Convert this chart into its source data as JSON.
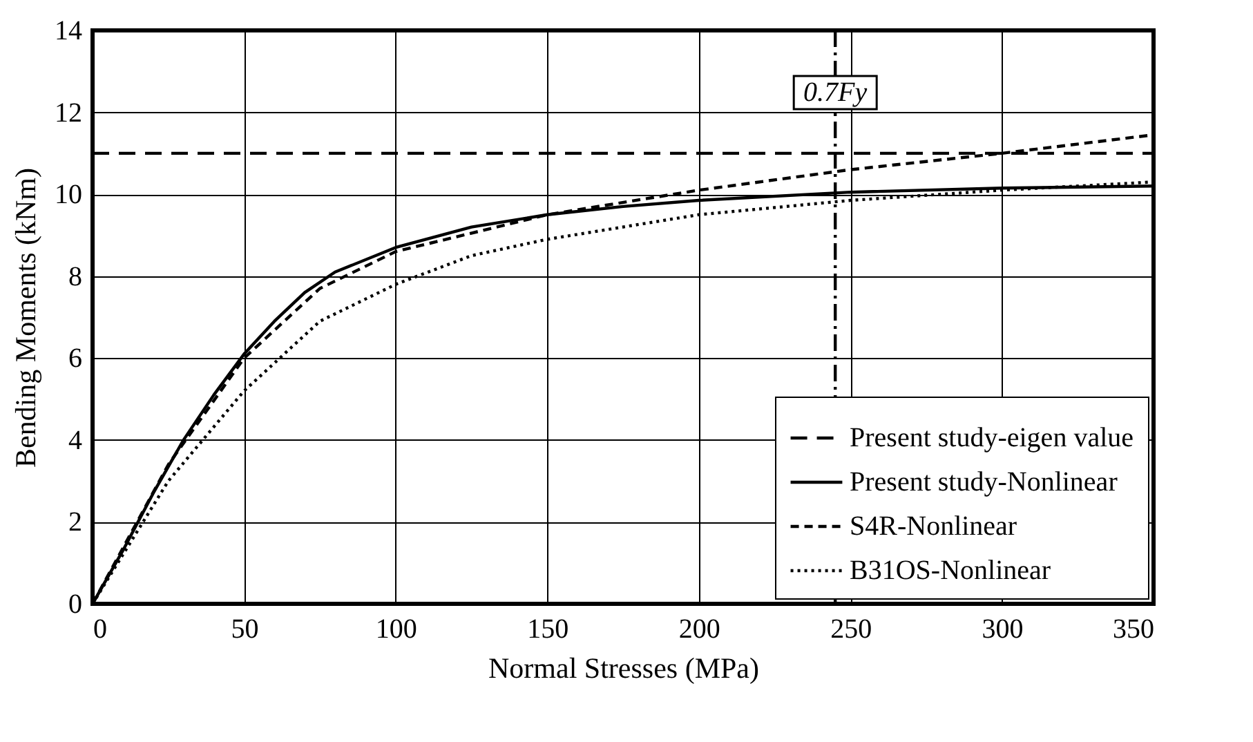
{
  "chart_data": {
    "type": "line",
    "xlabel": "Normal Stresses (MPa)",
    "ylabel": "Bending Moments (kNm)",
    "xlim": [
      0,
      350
    ],
    "xticks": [
      0,
      50,
      100,
      150,
      200,
      250,
      300,
      350
    ],
    "ylim": [
      0,
      14
    ],
    "yticks": [
      0,
      2,
      4,
      6,
      8,
      10,
      12,
      14
    ],
    "grid": true,
    "legend": "bottom right",
    "series": [
      {
        "name": "Present study-eigen value",
        "color": "#000000",
        "line_style": "dashed",
        "x": [
          0,
          350
        ],
        "values": [
          11,
          11
        ]
      },
      {
        "name": "Present study-Nonlinear",
        "color": "#000000",
        "line_style": "solid",
        "x": [
          0,
          10,
          20,
          30,
          40,
          50,
          60,
          70,
          80,
          100,
          125,
          150,
          175,
          200,
          250,
          300,
          350
        ],
        "values": [
          0,
          1.3,
          2.7,
          4.0,
          5.1,
          6.1,
          6.9,
          7.6,
          8.1,
          8.7,
          9.2,
          9.5,
          9.7,
          9.85,
          10.05,
          10.15,
          10.2
        ]
      },
      {
        "name": "S4R-Nonlinear",
        "color": "#000000",
        "line_style": "dashed",
        "x": [
          0,
          25,
          50,
          75,
          100,
          150,
          200,
          250,
          300,
          350
        ],
        "values": [
          0,
          3.4,
          6.0,
          7.7,
          8.6,
          9.5,
          10.1,
          10.6,
          11.0,
          11.45
        ]
      },
      {
        "name": "B31OS-Nonlinear",
        "color": "#000000",
        "line_style": "dotted",
        "x": [
          0,
          25,
          50,
          75,
          100,
          125,
          150,
          200,
          250,
          300,
          350
        ],
        "values": [
          0,
          3.0,
          5.2,
          6.9,
          7.8,
          8.5,
          8.9,
          9.5,
          9.85,
          10.1,
          10.3
        ]
      }
    ],
    "ref_lines": [
      {
        "axis": "x",
        "value": 245,
        "label": "0.7Fy",
        "line_style": "dashdot"
      }
    ]
  }
}
